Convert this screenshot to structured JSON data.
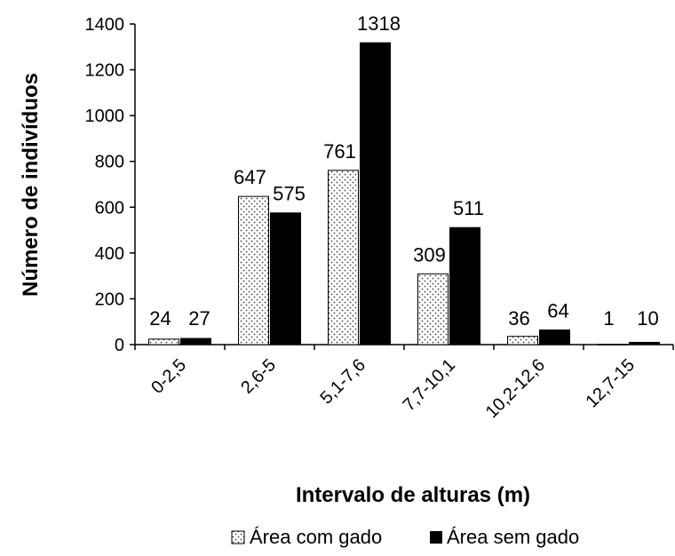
{
  "chart_data": {
    "type": "bar",
    "xlabel": "Intervalo de alturas (m)",
    "ylabel": "Número de indivíduos",
    "ylim": [
      0,
      1400
    ],
    "yticks": [
      "0",
      "200",
      "400",
      "600",
      "800",
      "1000",
      "1200",
      "1400"
    ],
    "categories": [
      "0-2,5",
      "2,6-5",
      "5,1-7,6",
      "7,7-10,1",
      "10,2-12,6",
      "12,7-15"
    ],
    "series": [
      {
        "name": "Área com gado",
        "values": [
          24,
          647,
          761,
          309,
          36,
          1
        ],
        "pattern": "dots",
        "color": "#ffffff"
      },
      {
        "name": "Área sem gado",
        "values": [
          27,
          575,
          1318,
          511,
          64,
          10
        ],
        "pattern": "solid",
        "color": "#000000"
      }
    ],
    "grid": false,
    "legend_position": "bottom"
  }
}
